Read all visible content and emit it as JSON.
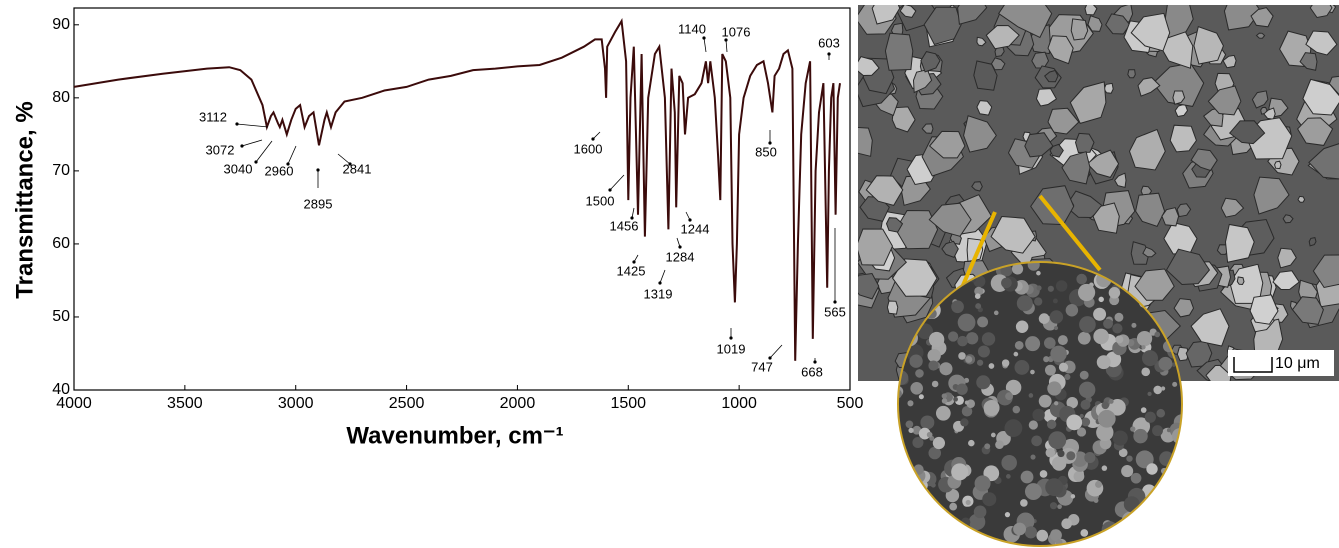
{
  "chart_data": {
    "type": "line",
    "xlabel": "Wavenumber, cm⁻¹",
    "ylabel": "Transmittance, %",
    "xlim": [
      4000,
      500
    ],
    "ylim": [
      40,
      92.3
    ],
    "xticks": [
      4000,
      3500,
      3000,
      2500,
      2000,
      1500,
      1000,
      500
    ],
    "yticks": [
      40,
      50,
      60,
      70,
      80,
      90
    ],
    "color": "#3b0b0b",
    "x": [
      4000,
      3800,
      3600,
      3400,
      3300,
      3250,
      3200,
      3150,
      3130,
      3112,
      3100,
      3080,
      3072,
      3060,
      3040,
      3020,
      3000,
      2980,
      2960,
      2940,
      2920,
      2895,
      2870,
      2860,
      2841,
      2820,
      2780,
      2700,
      2600,
      2500,
      2400,
      2300,
      2200,
      2100,
      2000,
      1900,
      1800,
      1700,
      1650,
      1620,
      1605,
      1600,
      1595,
      1560,
      1530,
      1510,
      1500,
      1490,
      1475,
      1456,
      1440,
      1425,
      1410,
      1380,
      1360,
      1335,
      1319,
      1305,
      1290,
      1284,
      1270,
      1255,
      1244,
      1230,
      1200,
      1170,
      1150,
      1140,
      1130,
      1110,
      1095,
      1085,
      1076,
      1060,
      1040,
      1030,
      1019,
      1010,
      1000,
      980,
      950,
      920,
      890,
      870,
      850,
      840,
      820,
      800,
      780,
      760,
      747,
      735,
      720,
      700,
      680,
      668,
      655,
      640,
      620,
      603,
      595,
      585,
      575,
      565,
      555,
      545
    ],
    "values": [
      81.5,
      82.5,
      83.3,
      84,
      84.2,
      83.8,
      82.5,
      79,
      76,
      77.5,
      78,
      76.5,
      76,
      77,
      75,
      77,
      78.5,
      79,
      76,
      77.5,
      78,
      73.5,
      77,
      78,
      76,
      78,
      79.5,
      80,
      81,
      81.5,
      82.5,
      83,
      83.8,
      84,
      84.3,
      84.5,
      85.5,
      87,
      88,
      88,
      84,
      80,
      87,
      89,
      90.5,
      85,
      66,
      80,
      87,
      64,
      86,
      61,
      80,
      86,
      87,
      80,
      62,
      84,
      78,
      65,
      83,
      82,
      75,
      80,
      80.5,
      82,
      85,
      82,
      85,
      80,
      72,
      66,
      86,
      85,
      80,
      60,
      52,
      60,
      75,
      80,
      83,
      84.5,
      85,
      82,
      78,
      83,
      84,
      86,
      86.5,
      84,
      44,
      60,
      75,
      82,
      85,
      47,
      70,
      78,
      82,
      54,
      70,
      80,
      82,
      64,
      80,
      82
    ],
    "annotations": [
      "3112",
      "3072",
      "3040",
      "2960",
      "2895",
      "2841",
      "1600",
      "1500",
      "1456",
      "1425",
      "1319",
      "1284",
      "1244",
      "1140",
      "1076",
      "850",
      "1019",
      "747",
      "668",
      "603",
      "565"
    ],
    "scale_bar_label": "10 μm"
  }
}
